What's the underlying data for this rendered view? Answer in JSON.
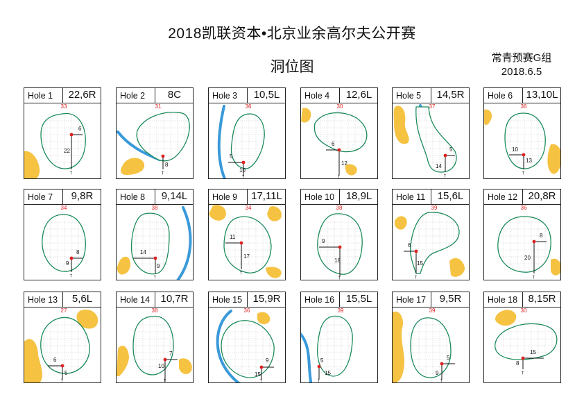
{
  "header": {
    "title": "2018凯联资本•北京业余高尔夫公开赛",
    "subtitle": "洞位图",
    "group": "常青预赛G组",
    "date": "2018.6.5"
  },
  "colors": {
    "green_outline": "#1b8a5a",
    "bunker": "#f5c242",
    "water": "#3a9ad9",
    "pin": "#e02020",
    "grid": "#c8c8c8",
    "depth_text": "#e02020"
  },
  "holes": [
    {
      "name": "Hole 1",
      "pin": "22,6R",
      "depth": "33",
      "a": "6",
      "b": "22"
    },
    {
      "name": "Hole 2",
      "pin": "8C",
      "depth": "31",
      "a": "",
      "b": "8"
    },
    {
      "name": "Hole 3",
      "pin": "10,5L",
      "depth": "36",
      "a": "5",
      "b": "10"
    },
    {
      "name": "Hole 4",
      "pin": "12,6L",
      "depth": "30",
      "a": "6",
      "b": "12"
    },
    {
      "name": "Hole 5",
      "pin": "14,5R",
      "depth": "37",
      "a": "5",
      "b": "14"
    },
    {
      "name": "Hole 6",
      "pin": "13,10L",
      "depth": "36",
      "a": "10",
      "b": "13"
    },
    {
      "name": "Hole 7",
      "pin": "9,8R",
      "depth": "34",
      "a": "8",
      "b": "9"
    },
    {
      "name": "Hole 8",
      "pin": "9,14L",
      "depth": "38",
      "a": "14",
      "b": "9"
    },
    {
      "name": "Hole 9",
      "pin": "17,11L",
      "depth": "34",
      "a": "11",
      "b": "17"
    },
    {
      "name": "Hole 10",
      "pin": "18,9L",
      "depth": "38",
      "a": "9",
      "b": "18"
    },
    {
      "name": "Hole 11",
      "pin": "15,6L",
      "depth": "39",
      "a": "6",
      "b": "15"
    },
    {
      "name": "Hole 12",
      "pin": "20,8R",
      "depth": "36",
      "a": "8",
      "b": "20"
    },
    {
      "name": "Hole 13",
      "pin": "5,6L",
      "depth": "27",
      "a": "6",
      "b": "5"
    },
    {
      "name": "Hole 14",
      "pin": "10,7R",
      "depth": "38",
      "a": "7",
      "b": "10"
    },
    {
      "name": "Hole 15",
      "pin": "15,9R",
      "depth": "36",
      "a": "9",
      "b": "15"
    },
    {
      "name": "Hole 16",
      "pin": "15,5L",
      "depth": "39",
      "a": "5",
      "b": "15"
    },
    {
      "name": "Hole 17",
      "pin": "9,5R",
      "depth": "39",
      "a": "5",
      "b": "9"
    },
    {
      "name": "Hole 18",
      "pin": "8,15R",
      "depth": "30",
      "a": "15",
      "b": "8"
    }
  ]
}
